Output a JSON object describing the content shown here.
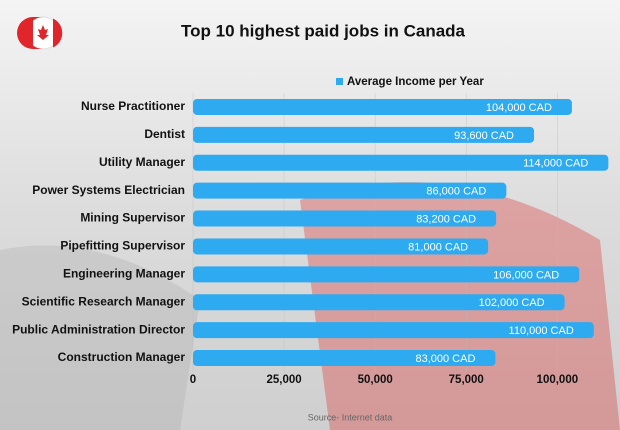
{
  "chart_data": {
    "type": "bar",
    "orientation": "horizontal",
    "title": "Top 10 highest paid jobs in Canada",
    "source": "Source- Internet data",
    "categories": [
      "Nurse Practitioner",
      "Dentist",
      "Utility Manager",
      "Power Systems Electrician",
      "Mining Supervisor",
      "Pipefitting Supervisor",
      "Engineering Manager",
      "Scientific Research Manager",
      "Public Administration Director",
      "Construction Manager"
    ],
    "series": [
      {
        "name": "Average Income per Year",
        "color": "#2eaaf0",
        "values": [
          104000,
          93600,
          114000,
          86000,
          83200,
          81000,
          106000,
          102000,
          110000,
          83000
        ],
        "value_labels": [
          "104,000 CAD",
          "93,600 CAD",
          "114,000 CAD",
          "86,000 CAD",
          "83,200 CAD",
          "81,000 CAD",
          "106,000 CAD",
          "102,000 CAD",
          "110,000 CAD",
          "83,000 CAD"
        ]
      }
    ],
    "xlim": [
      0,
      115000
    ],
    "xticks": [
      0,
      {
        "value": 25000,
        "label": "25,000"
      },
      {
        "value": 50000,
        "label": "50,000"
      },
      {
        "value": 75000,
        "label": "75,000"
      },
      {
        "value": 100000,
        "label": "100,000"
      }
    ],
    "grid": true,
    "legend": "top"
  }
}
